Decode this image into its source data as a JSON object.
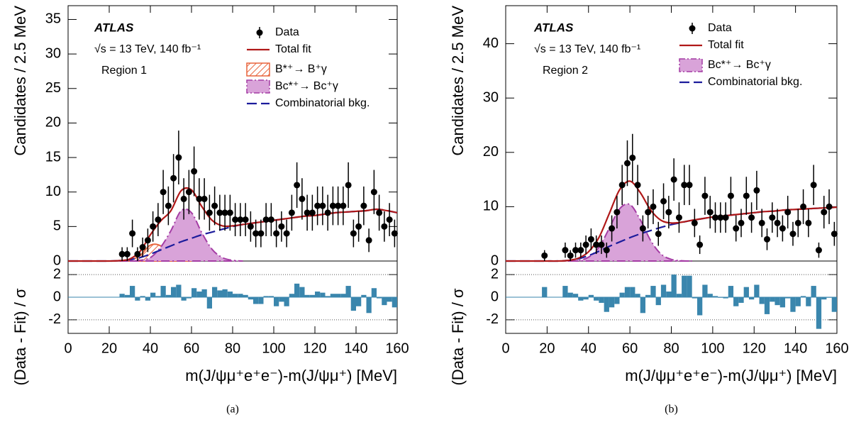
{
  "chart_data": [
    {
      "type": "fit",
      "caption": "(a)",
      "annotations": [
        "ATLAS",
        "√s = 13 TeV, 140 fb⁻¹",
        "Region 1"
      ],
      "xlabel": "m(J/ψμ⁺e⁺e⁻)-m(J/ψμ⁺) [MeV]",
      "ylabel": "Candidates / 2.5 MeV",
      "residual_ylabel": "(Data - Fit) / σ",
      "xlim": [
        0,
        160
      ],
      "xticks": [
        0,
        20,
        40,
        60,
        80,
        100,
        120,
        140,
        160
      ],
      "ylim": [
        0,
        37
      ],
      "yticks": [
        0,
        5,
        10,
        15,
        20,
        25,
        30,
        35
      ],
      "residual_ylim": [
        -3.2,
        3.2
      ],
      "residual_yticks": [
        -2,
        0,
        2
      ],
      "residual_ref_lines": [
        -2,
        2
      ],
      "residual_color": "#3a86ad",
      "residual_bin_width": 2.5,
      "series": [
        {
          "name": "Data",
          "kind": "points",
          "color": "#000000",
          "x": [
            26.25,
            28.75,
            31.25,
            33.75,
            36.25,
            38.75,
            41.25,
            43.75,
            46.25,
            48.75,
            51.25,
            53.75,
            56.25,
            58.75,
            61.25,
            63.75,
            66.25,
            68.75,
            71.25,
            73.75,
            76.25,
            78.75,
            81.25,
            83.75,
            86.25,
            88.75,
            91.25,
            93.75,
            96.25,
            98.75,
            101.25,
            103.75,
            106.25,
            108.75,
            111.25,
            113.75,
            116.25,
            118.75,
            121.25,
            123.75,
            126.25,
            128.75,
            131.25,
            133.75,
            136.25,
            138.75,
            141.25,
            143.75,
            146.25,
            148.75,
            151.25,
            153.75,
            156.25,
            158.75
          ],
          "values": [
            1,
            1,
            4,
            1,
            2,
            3,
            5,
            6,
            10,
            8,
            12,
            15,
            9,
            10,
            13,
            9,
            9,
            7,
            8,
            7,
            7,
            7,
            6,
            6,
            6,
            5,
            4,
            4,
            6,
            6,
            4,
            5,
            4,
            7,
            11,
            9,
            7,
            7,
            8,
            8,
            7,
            8,
            8,
            8,
            11,
            4,
            5,
            8,
            3,
            10,
            7,
            5,
            6,
            4
          ],
          "errors": [
            1,
            1,
            2,
            1,
            1.4,
            1.7,
            2.2,
            2.4,
            3.2,
            2.8,
            3.5,
            3.9,
            3,
            3.2,
            3.6,
            3,
            3,
            2.6,
            2.8,
            2.6,
            2.6,
            2.6,
            2.4,
            2.4,
            2.4,
            2.2,
            2,
            2,
            2.4,
            2.4,
            2,
            2.2,
            2,
            2.6,
            3.3,
            3,
            2.6,
            2.6,
            2.8,
            2.8,
            2.6,
            2.8,
            2.8,
            2.8,
            3.3,
            2,
            2.2,
            2.8,
            1.7,
            3.2,
            2.6,
            2.2,
            2.4,
            2
          ],
          "residuals": [
            0.3,
            0.2,
            1.0,
            -0.3,
            0.1,
            -0.3,
            0.4,
            0.1,
            1.0,
            0.2,
            0.9,
            1.1,
            -0.3,
            -0.1,
            0.8,
            0.5,
            0.7,
            -1.0,
            0.9,
            0.6,
            0.7,
            0.5,
            0.3,
            0.3,
            0.2,
            -0.2,
            -0.6,
            -0.6,
            0.1,
            0.1,
            -0.8,
            -0.4,
            -0.8,
            0.3,
            1.2,
            0.9,
            0.2,
            0.2,
            0.5,
            0.4,
            0.1,
            0.3,
            0.3,
            0.3,
            1.0,
            -1.2,
            -0.8,
            0.2,
            -1.4,
            0.8,
            -0.1,
            -0.7,
            -0.4,
            -0.9
          ]
        },
        {
          "name": "Total fit",
          "kind": "line",
          "color": "#b01818",
          "x": [
            0,
            5,
            10,
            15,
            20,
            25,
            30,
            35,
            40,
            45,
            50,
            55,
            60,
            65,
            70,
            75,
            80,
            85,
            90,
            95,
            100,
            105,
            110,
            115,
            120,
            125,
            130,
            135,
            140,
            145,
            150,
            155,
            160
          ],
          "values": [
            0,
            0,
            0,
            0,
            0,
            0.05,
            0.3,
            1.4,
            3.8,
            5.8,
            7.3,
            10.2,
            10.3,
            7.9,
            5.9,
            5.1,
            5.1,
            5.3,
            5.5,
            5.7,
            5.9,
            6.1,
            6.3,
            6.5,
            6.6,
            6.8,
            7.0,
            7.1,
            7.2,
            7.3,
            7.5,
            7.3,
            7.0
          ]
        },
        {
          "name": "B*⁺→ B⁺γ",
          "kind": "hatch",
          "color": "#e8643c",
          "x": [
            25,
            30,
            35,
            40,
            45,
            50,
            55,
            60
          ],
          "values": [
            0,
            0.1,
            0.8,
            2.3,
            2.2,
            0.7,
            0.1,
            0
          ]
        },
        {
          "name": "Bc*⁺→ Bc⁺γ",
          "kind": "area",
          "color": "#a43ca4",
          "fill": "#d9a3d9",
          "x": [
            25,
            30,
            35,
            40,
            45,
            50,
            55,
            60,
            65,
            70,
            75,
            80,
            85
          ],
          "values": [
            0,
            0,
            0.1,
            0.5,
            2,
            4.4,
            7.3,
            7.0,
            4.1,
            1.7,
            0.5,
            0.1,
            0
          ]
        },
        {
          "name": "Combinatorial bkg.",
          "kind": "dashed",
          "color": "#1c1c9c",
          "x": [
            0,
            5,
            10,
            15,
            20,
            25,
            30,
            35,
            40,
            45,
            50,
            55,
            60,
            65,
            70,
            75,
            80,
            85,
            90,
            95,
            100,
            105,
            110,
            115,
            120,
            125,
            130,
            135,
            140,
            145,
            150,
            155,
            160
          ],
          "values": [
            0,
            0,
            0,
            0,
            0,
            0.05,
            0.2,
            0.5,
            1,
            1.6,
            2.2,
            2.8,
            3.3,
            3.8,
            4.2,
            4.6,
            5,
            5.3,
            5.5,
            5.7,
            5.9,
            6.1,
            6.3,
            6.5,
            6.6,
            6.8,
            7.0,
            7.1,
            7.2,
            7.3,
            7.5,
            7.3,
            7.0
          ]
        }
      ]
    },
    {
      "type": "fit",
      "caption": "(b)",
      "annotations": [
        "ATLAS",
        "√s = 13 TeV, 140 fb⁻¹",
        "Region 2"
      ],
      "xlabel": "m(J/ψμ⁺e⁺e⁻)-m(J/ψμ⁺) [MeV]",
      "ylabel": "Candidates / 2.5 MeV",
      "residual_ylabel": "(Data - Fit) / σ",
      "xlim": [
        0,
        160
      ],
      "xticks": [
        0,
        20,
        40,
        60,
        80,
        100,
        120,
        140,
        160
      ],
      "ylim": [
        0,
        47
      ],
      "yticks": [
        0,
        10,
        20,
        30,
        40
      ],
      "residual_ylim": [
        -3.2,
        3.2
      ],
      "residual_yticks": [
        -2,
        0,
        2
      ],
      "residual_ref_lines": [
        -2,
        2
      ],
      "residual_color": "#3a86ad",
      "residual_bin_width": 2.5,
      "series": [
        {
          "name": "Data",
          "kind": "points",
          "color": "#000000",
          "x": [
            18.75,
            28.75,
            31.25,
            33.75,
            36.25,
            38.75,
            41.25,
            43.75,
            46.25,
            48.75,
            51.25,
            53.75,
            56.25,
            58.75,
            61.25,
            63.75,
            66.25,
            68.75,
            71.25,
            73.75,
            76.25,
            78.75,
            81.25,
            83.75,
            86.25,
            88.75,
            91.25,
            93.75,
            96.25,
            98.75,
            101.25,
            103.75,
            106.25,
            108.75,
            111.25,
            113.75,
            116.25,
            118.75,
            121.25,
            123.75,
            126.25,
            128.75,
            131.25,
            133.75,
            136.25,
            138.75,
            141.25,
            143.75,
            146.25,
            148.75,
            151.25,
            153.75,
            156.25,
            158.75
          ],
          "values": [
            1,
            2,
            1,
            2,
            2,
            3,
            4,
            3,
            3,
            2,
            6,
            9,
            14,
            18,
            19,
            14,
            6,
            9,
            10,
            5,
            11,
            9,
            15,
            8,
            14,
            14,
            7,
            3,
            12,
            9,
            8,
            8,
            8,
            12,
            6,
            7,
            12,
            8,
            13,
            7,
            4,
            8,
            7,
            6,
            9,
            5,
            7,
            10,
            7,
            14,
            2,
            9,
            10,
            5
          ],
          "errors": [
            1,
            1.4,
            1,
            1.4,
            1.4,
            1.7,
            2,
            1.7,
            1.7,
            1.4,
            2.4,
            3,
            3.7,
            4.2,
            4.4,
            3.7,
            2.4,
            3,
            3.2,
            2.2,
            3.3,
            3,
            3.9,
            2.8,
            3.7,
            3.7,
            2.6,
            1.7,
            3.5,
            3,
            2.8,
            2.8,
            2.8,
            3.5,
            2.4,
            2.6,
            3.5,
            2.8,
            3.6,
            2.6,
            2,
            2.8,
            2.6,
            2.4,
            3,
            2.2,
            2.6,
            3.2,
            2.6,
            3.7,
            1.4,
            3,
            3.2,
            2.2
          ],
          "residuals": [
            0.9,
            1.0,
            0.4,
            0.3,
            -0.3,
            -0.2,
            0.2,
            -0.3,
            -0.5,
            -1.3,
            -0.9,
            -0.6,
            0.4,
            0.9,
            0.9,
            0.3,
            -1.4,
            0.2,
            1.0,
            -0.7,
            1.1,
            0.5,
            2.0,
            0.3,
            1.9,
            1.9,
            -0.1,
            -1.6,
            1.1,
            0.3,
            0.1,
            0.0,
            -0.1,
            1.0,
            -0.8,
            -0.5,
            0.9,
            -0.2,
            1.1,
            -0.6,
            -1.5,
            -0.4,
            -0.7,
            -0.9,
            -0.1,
            -1.3,
            -0.8,
            0.1,
            -0.8,
            1.0,
            -2.8,
            -0.2,
            0.0,
            -1.3
          ]
        },
        {
          "name": "Total fit",
          "kind": "line",
          "color": "#b01818",
          "x": [
            0,
            5,
            10,
            15,
            20,
            25,
            30,
            35,
            40,
            45,
            50,
            55,
            60,
            65,
            70,
            75,
            80,
            85,
            90,
            95,
            100,
            105,
            110,
            115,
            120,
            125,
            130,
            135,
            140,
            145,
            150,
            155,
            160
          ],
          "values": [
            0,
            0,
            0,
            0,
            0,
            0,
            0.1,
            0.5,
            1.7,
            4.3,
            8.7,
            13.1,
            14.7,
            12.6,
            9.4,
            7.5,
            7.0,
            7.15,
            7.5,
            7.8,
            8.1,
            8.3,
            8.5,
            8.7,
            8.9,
            9.1,
            9.2,
            9.4,
            9.5,
            9.6,
            9.7,
            9.8,
            9.9
          ]
        },
        {
          "name": "Bc*⁺→ Bc⁺γ",
          "kind": "area",
          "color": "#a43ca4",
          "fill": "#d9a3d9",
          "x": [
            30,
            35,
            40,
            45,
            50,
            55,
            60,
            65,
            70,
            75,
            80,
            85,
            90
          ],
          "values": [
            0,
            0.1,
            0.7,
            2.5,
            6,
            9.6,
            10.4,
            7.6,
            3.8,
            1.3,
            0.3,
            0.05,
            0
          ]
        },
        {
          "name": "Combinatorial bkg.",
          "kind": "dashed",
          "color": "#1c1c9c",
          "x": [
            0,
            5,
            10,
            15,
            20,
            25,
            30,
            35,
            40,
            45,
            50,
            55,
            60,
            65,
            70,
            75,
            80,
            85,
            90,
            95,
            100,
            105,
            110,
            115,
            120,
            125,
            130,
            135,
            140,
            145,
            150,
            155,
            160
          ],
          "values": [
            0,
            0,
            0,
            0,
            0,
            0,
            0.1,
            0.4,
            1,
            1.8,
            2.7,
            3.5,
            4.3,
            5,
            5.6,
            6.2,
            6.7,
            7.1,
            7.5,
            7.8,
            8.1,
            8.3,
            8.5,
            8.7,
            8.9,
            9.1,
            9.2,
            9.4,
            9.5,
            9.6,
            9.7,
            9.8,
            9.9
          ]
        }
      ]
    }
  ]
}
